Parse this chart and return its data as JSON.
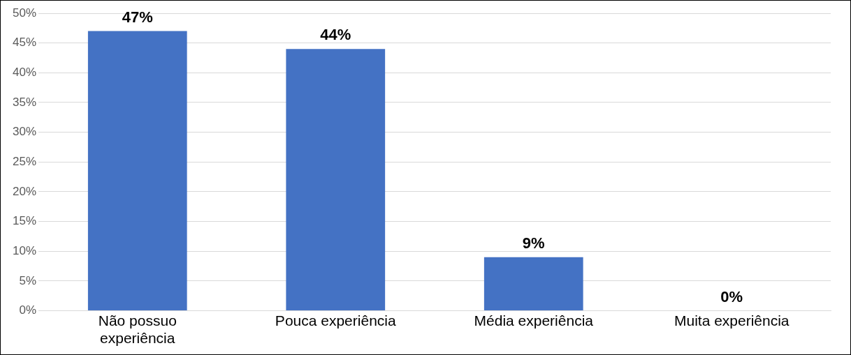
{
  "chart_data": {
    "type": "bar",
    "categories": [
      "Não possuo experiência",
      "Pouca experiência",
      "Média experiência",
      "Muita experiência"
    ],
    "values": [
      47,
      44,
      9,
      0
    ],
    "value_labels": [
      "47%",
      "44%",
      "9%",
      "0%"
    ],
    "color": "#4472c4",
    "ylim": [
      0,
      50
    ],
    "yticks": [
      {
        "value": 0,
        "label": "0%"
      },
      {
        "value": 5,
        "label": "5%"
      },
      {
        "value": 10,
        "label": "10%"
      },
      {
        "value": 15,
        "label": "15%"
      },
      {
        "value": 20,
        "label": "20%"
      },
      {
        "value": 25,
        "label": "25%"
      },
      {
        "value": 30,
        "label": "30%"
      },
      {
        "value": 35,
        "label": "35%"
      },
      {
        "value": 40,
        "label": "40%"
      },
      {
        "value": 45,
        "label": "45%"
      },
      {
        "value": 50,
        "label": "50%"
      }
    ],
    "grid": "y",
    "legend": false
  }
}
